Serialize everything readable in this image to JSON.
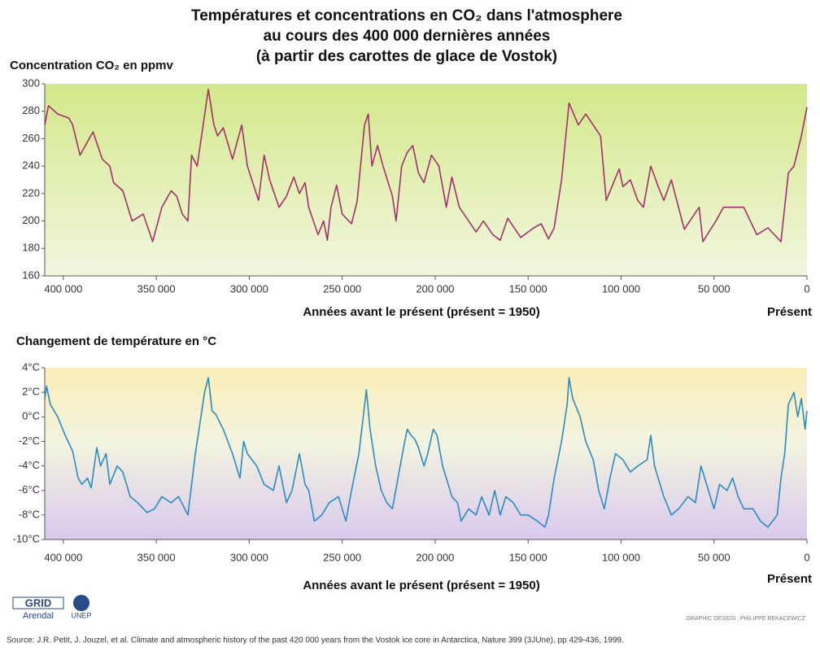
{
  "title": [
    "Températures et concentrations en CO₂ dans l'atmosphere",
    "au cours des 400 000 dernières années",
    "(à partir des carottes de glace de Vostok)"
  ],
  "chart_data": [
    {
      "type": "line",
      "y_label": "Concentration CO₂ en ppmv",
      "x_label": "Années avant le présent (présent = 1950)",
      "annotations": [
        "Présent"
      ],
      "xlim": [
        410000,
        0
      ],
      "ylim": [
        160,
        300
      ],
      "xticks": [
        {
          "value": 400000,
          "label": "400 000"
        },
        {
          "value": 350000,
          "label": "350 000"
        },
        {
          "value": 300000,
          "label": "300 000"
        },
        {
          "value": 250000,
          "label": "250 000"
        },
        {
          "value": 200000,
          "label": "200 000"
        },
        {
          "value": 150000,
          "label": "150 000"
        },
        {
          "value": 100000,
          "label": "100 000"
        },
        {
          "value": 50000,
          "label": "50 000"
        },
        0
      ],
      "yticks": [
        160,
        180,
        200,
        220,
        240,
        260,
        280,
        300
      ],
      "series": [
        {
          "color": "#a3306c",
          "x": [
            410000,
            408000,
            403000,
            397000,
            395000,
            391000,
            384000,
            379000,
            375000,
            373000,
            368000,
            363000,
            357000,
            352000,
            347000,
            342000,
            339000,
            336000,
            333000,
            331000,
            328000,
            322000,
            319000,
            317000,
            314000,
            309000,
            304000,
            301000,
            295000,
            292000,
            289000,
            284000,
            280000,
            276000,
            273000,
            270000,
            268000,
            263000,
            260000,
            258000,
            256000,
            253000,
            250000,
            245000,
            242000,
            238000,
            236000,
            234000,
            231000,
            228000,
            223000,
            221000,
            218000,
            215000,
            212000,
            209000,
            206000,
            202000,
            198000,
            194000,
            191000,
            187000,
            182000,
            178000,
            174000,
            169000,
            165000,
            161000,
            154000,
            147000,
            143000,
            139000,
            136000,
            132000,
            128000,
            123000,
            119000,
            111000,
            108000,
            101000,
            99000,
            95000,
            91000,
            88000,
            84000,
            80000,
            77000,
            73000,
            66000,
            58000,
            56000,
            49000,
            45000,
            34000,
            27000,
            21000,
            14000,
            10000,
            7000,
            3000,
            0
          ],
          "values": [
            270,
            284,
            278,
            275,
            270,
            248,
            265,
            245,
            240,
            228,
            222,
            200,
            205,
            185,
            210,
            222,
            218,
            205,
            200,
            248,
            240,
            296,
            270,
            262,
            268,
            245,
            270,
            240,
            215,
            248,
            230,
            210,
            218,
            232,
            220,
            228,
            210,
            190,
            200,
            186,
            210,
            226,
            205,
            198,
            214,
            270,
            278,
            240,
            255,
            240,
            218,
            200,
            240,
            250,
            255,
            235,
            228,
            248,
            240,
            210,
            232,
            210,
            200,
            192,
            200,
            190,
            186,
            202,
            188,
            195,
            198,
            187,
            195,
            230,
            286,
            270,
            278,
            262,
            215,
            238,
            225,
            230,
            215,
            210,
            240,
            225,
            215,
            230,
            194,
            210,
            185,
            200,
            210,
            210,
            190,
            195,
            185,
            235,
            240,
            262,
            283
          ]
        }
      ]
    },
    {
      "type": "line",
      "y_label": "Changement de température en °C",
      "x_label": "Années avant le présent (présent = 1950)",
      "annotations": [
        "Présent"
      ],
      "xlim": [
        410000,
        0
      ],
      "ylim": [
        -10,
        4
      ],
      "xticks": [
        {
          "value": 400000,
          "label": "400 000"
        },
        {
          "value": 350000,
          "label": "350 000"
        },
        {
          "value": 300000,
          "label": "300 000"
        },
        {
          "value": 250000,
          "label": "250 000"
        },
        {
          "value": 200000,
          "label": "200 000"
        },
        {
          "value": 150000,
          "label": "150 000"
        },
        {
          "value": 100000,
          "label": "100 000"
        },
        {
          "value": 50000,
          "label": "50 000"
        },
        0
      ],
      "yticks": [
        {
          "value": -10,
          "label": "-10°C"
        },
        {
          "value": -8,
          "label": "-8°C"
        },
        {
          "value": -6,
          "label": "-6°C"
        },
        {
          "value": -4,
          "label": "-4°C"
        },
        {
          "value": -2,
          "label": "-2°C"
        },
        {
          "value": 0,
          "label": "0°C"
        },
        {
          "value": 2,
          "label": "2°C"
        },
        {
          "value": 4,
          "label": "4°C"
        }
      ],
      "series": [
        {
          "color": "#2b8bc2",
          "x": [
            410000,
            409000,
            407000,
            403000,
            399000,
            395000,
            392000,
            390000,
            387000,
            385000,
            382000,
            380000,
            377000,
            375000,
            371000,
            368000,
            364000,
            360000,
            355000,
            351000,
            347000,
            342000,
            338000,
            333000,
            329000,
            326000,
            324000,
            322000,
            320000,
            318000,
            314000,
            309000,
            305000,
            303000,
            301000,
            296000,
            292000,
            287000,
            284000,
            280000,
            277000,
            273000,
            270000,
            268000,
            265000,
            261000,
            257000,
            252000,
            248000,
            245000,
            241000,
            237000,
            235000,
            232000,
            229000,
            226000,
            223000,
            220000,
            217000,
            215000,
            213000,
            211000,
            209000,
            206000,
            204000,
            201000,
            199000,
            196000,
            193000,
            191000,
            188000,
            186000,
            182000,
            178000,
            175000,
            171000,
            168000,
            165000,
            162000,
            158000,
            154000,
            150000,
            145000,
            141000,
            139000,
            136000,
            132000,
            129000,
            128000,
            126000,
            122000,
            119000,
            115000,
            112000,
            109000,
            106000,
            103000,
            99000,
            95000,
            91000,
            86000,
            84000,
            82000,
            77000,
            73000,
            69000,
            64000,
            60000,
            57000,
            53000,
            50000,
            47000,
            43000,
            40000,
            37000,
            34000,
            29000,
            25000,
            21000,
            16000,
            14000,
            12000,
            10000,
            7000,
            5000,
            3000,
            1000,
            0
          ],
          "values": [
            1.5,
            2.5,
            1,
            0,
            -1.5,
            -2.8,
            -5,
            -5.5,
            -5,
            -5.8,
            -2.5,
            -4,
            -3,
            -5.5,
            -4,
            -4.5,
            -6.5,
            -7,
            -7.8,
            -7.5,
            -6.5,
            -7,
            -6.5,
            -8,
            -3,
            0,
            2,
            3.2,
            0.5,
            0.2,
            -1,
            -3,
            -5,
            -2,
            -3,
            -4,
            -5.5,
            -6,
            -4,
            -7,
            -6,
            -3,
            -5.5,
            -6,
            -8.5,
            -8,
            -7,
            -6.5,
            -8.5,
            -6,
            -3,
            2.2,
            -1,
            -4,
            -6,
            -7,
            -7.5,
            -5,
            -2.5,
            -1,
            -1.5,
            -1.8,
            -2.5,
            -4,
            -3,
            -1,
            -1.5,
            -4,
            -5.5,
            -6.5,
            -7,
            -8.5,
            -7.5,
            -8,
            -6.5,
            -8,
            -6,
            -8,
            -6.5,
            -7,
            -8,
            -8,
            -8.5,
            -9,
            -8,
            -5,
            -2,
            1,
            3.2,
            1.5,
            0,
            -2,
            -3.5,
            -6,
            -7.5,
            -5,
            -3,
            -3.5,
            -4.5,
            -4,
            -3.5,
            -1.5,
            -4,
            -6.5,
            -8,
            -7.5,
            -6.5,
            -7,
            -4,
            -6,
            -7.5,
            -5.5,
            -6,
            -5,
            -6.5,
            -7.5,
            -7.5,
            -8.5,
            -9,
            -8,
            -5,
            -3,
            1,
            2,
            0,
            1.5,
            -1,
            0.5
          ]
        }
      ]
    }
  ],
  "logos": [
    "GRID",
    "Arendal",
    "UNEP"
  ],
  "credit": "GRAPHIC DESIGN : PHILIPPE REKACEWICZ",
  "source": "Source: J.R. Petit, J. Jouzel, et al. Climate and atmospheric history of the past 420 000 years from the Vostok ice core in Antarctica, Nature 399 (3JUne), pp 429-436, 1999."
}
